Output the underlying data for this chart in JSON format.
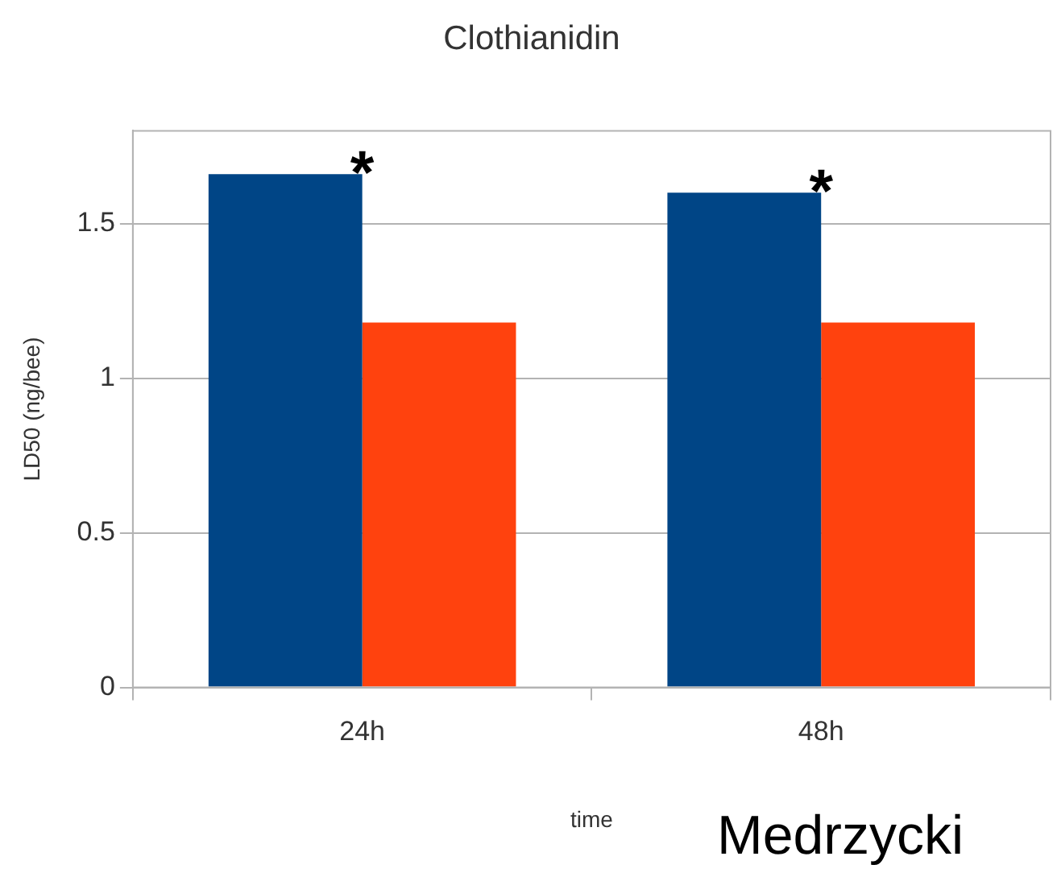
{
  "chart_data": {
    "type": "bar",
    "title": "Clothianidin",
    "xlabel": "time",
    "ylabel": "LD50 (ng/bee)",
    "categories": [
      "24h",
      "48h"
    ],
    "series": [
      {
        "color": "#004586",
        "values": [
          1.66,
          1.6
        ]
      },
      {
        "color": "#ff420e",
        "values": [
          1.18,
          1.18
        ]
      }
    ],
    "ylim": [
      0,
      1.8
    ],
    "yticks": [
      0,
      0.5,
      1,
      1.5
    ],
    "grid": "y",
    "legend": false,
    "annotations": [
      {
        "text": "*",
        "x": "24h",
        "y": 1.66
      },
      {
        "text": "*",
        "x": "48h",
        "y": 1.6
      },
      "Medrzycki"
    ]
  }
}
